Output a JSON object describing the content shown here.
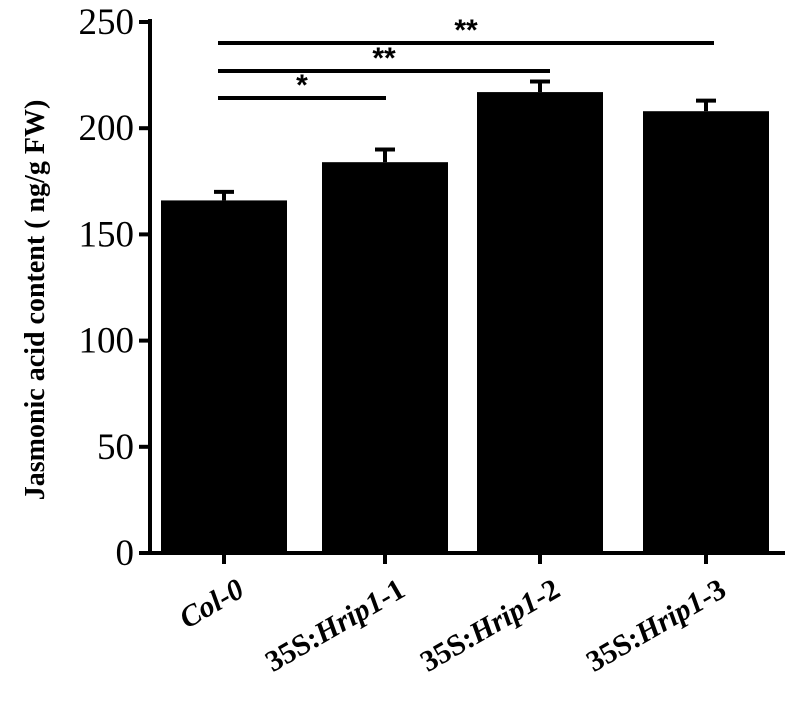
{
  "chart_data": {
    "type": "bar",
    "title": "",
    "xlabel": "",
    "ylabel": "Jasmonic acid content ( ng/g FW)",
    "ylim": [
      0,
      250
    ],
    "yticks": [
      "0",
      "50",
      "100",
      "150",
      "200",
      "250"
    ],
    "categories": [
      {
        "prefix": "",
        "italic": "Col-0",
        "suffix": ""
      },
      {
        "prefix": "35S:",
        "italic": "Hrip1",
        "suffix": "-1"
      },
      {
        "prefix": "35S:",
        "italic": "Hrip1",
        "suffix": "-2"
      },
      {
        "prefix": "35S:",
        "italic": "Hrip1",
        "suffix": "-3"
      }
    ],
    "values": [
      166,
      184,
      217,
      208
    ],
    "errors": [
      4,
      6,
      5,
      5
    ],
    "bar_color": "#000000",
    "significance": [
      {
        "from": 0,
        "to": 1,
        "label": "*"
      },
      {
        "from": 0,
        "to": 2,
        "label": "**"
      },
      {
        "from": 0,
        "to": 3,
        "label": "**"
      }
    ]
  }
}
